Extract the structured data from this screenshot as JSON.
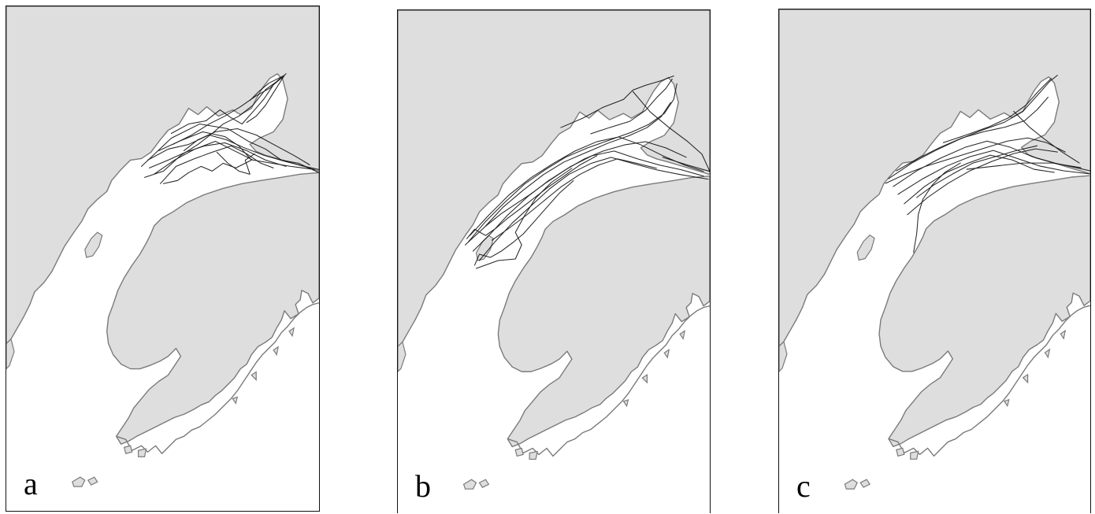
{
  "figure": {
    "panels": [
      {
        "id": "a",
        "label": "a",
        "track_region": "upper-inlet"
      },
      {
        "id": "b",
        "label": "b",
        "track_region": "upper-and-mid-inlet"
      },
      {
        "id": "c",
        "label": "c",
        "track_region": "upper-inlet-wide"
      }
    ],
    "colors": {
      "land": "#dedede",
      "coastline": "#7a7a7a",
      "water": "#ffffff",
      "tracks": "#000000"
    }
  }
}
